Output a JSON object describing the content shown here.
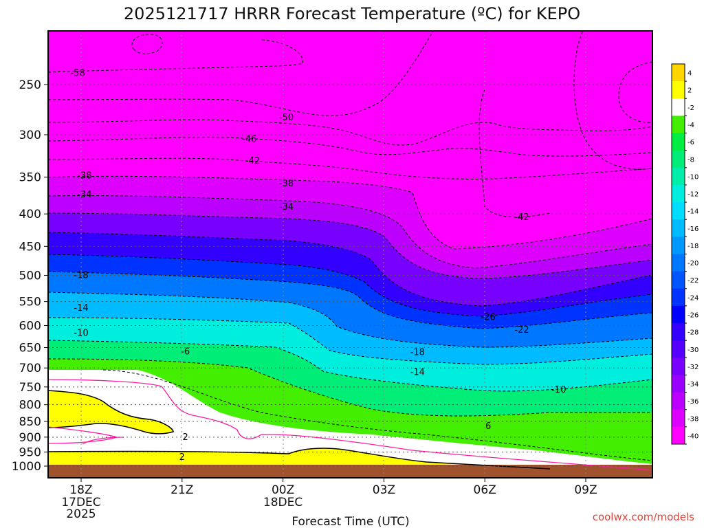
{
  "chart_data": {
    "type": "heatmap",
    "title": "2025121717 HRRR Forecast Temperature (ºC) for KEPO",
    "xlabel": "Forecast Time (UTC)",
    "ylabel": "",
    "credit": "coolwx.com/models",
    "y_scale": "log-pressure (inverted)",
    "ylim": [
      1000,
      200
    ],
    "grid": true,
    "legend": "right colorbar",
    "x_ticks": [
      {
        "label": "18Z",
        "sub": [
          "17DEC",
          "2025"
        ],
        "hour": 0
      },
      {
        "label": "21Z",
        "sub": [],
        "hour": 3
      },
      {
        "label": "00Z",
        "sub": [
          "18DEC"
        ],
        "hour": 6
      },
      {
        "label": "03Z",
        "sub": [],
        "hour": 9
      },
      {
        "label": "06Z",
        "sub": [],
        "hour": 12
      },
      {
        "label": "09Z",
        "sub": [],
        "hour": 15
      }
    ],
    "xlim_hours": [
      -1,
      17
    ],
    "y_ticks": [
      "250",
      "300",
      "350",
      "400",
      "450",
      "500",
      "550",
      "600",
      "650",
      "700",
      "750",
      "800",
      "850",
      "900",
      "950",
      "1000"
    ],
    "colorbar": {
      "levels": [
        "4",
        "2",
        "-2",
        "-4",
        "-6",
        "-8",
        "-10",
        "-12",
        "-14",
        "-16",
        "-18",
        "-20",
        "-22",
        "-24",
        "-26",
        "-28",
        "-30",
        "-32",
        "-34",
        "-36",
        "-38",
        "-40"
      ],
      "colors": [
        "#ffd600",
        "#ffff00",
        "#ffffff",
        "#44ee00",
        "#00ee44",
        "#00ee77",
        "#00eeaa",
        "#00eedd",
        "#00ddff",
        "#00bbff",
        "#0099ff",
        "#0077ff",
        "#0055ff",
        "#0033ff",
        "#0000ff",
        "#3300ff",
        "#5500ff",
        "#7700ff",
        "#9900ff",
        "#bb00ff",
        "#dd00ff",
        "#ff00ff"
      ]
    },
    "contour_labels": [
      {
        "text": "-58",
        "hour": -0.1,
        "p": 240
      },
      {
        "text": "-50",
        "hour": 6.1,
        "p": 282
      },
      {
        "text": "-46",
        "hour": 5.0,
        "p": 305
      },
      {
        "text": "-42",
        "hour": 5.1,
        "p": 330
      },
      {
        "text": "-42",
        "hour": 13.1,
        "p": 405
      },
      {
        "text": "-38",
        "hour": 0.1,
        "p": 348
      },
      {
        "text": "-38",
        "hour": 6.1,
        "p": 358
      },
      {
        "text": "-34",
        "hour": 0.1,
        "p": 373
      },
      {
        "text": "-34",
        "hour": 6.1,
        "p": 390
      },
      {
        "text": "-26",
        "hour": 12.1,
        "p": 582
      },
      {
        "text": "-22",
        "hour": 13.1,
        "p": 610
      },
      {
        "text": "-18",
        "hour": 0.0,
        "p": 500
      },
      {
        "text": "-18",
        "hour": 10.0,
        "p": 661
      },
      {
        "text": "-14",
        "hour": 0.0,
        "p": 563
      },
      {
        "text": "-14",
        "hour": 10.0,
        "p": 711
      },
      {
        "text": "-10",
        "hour": 0.0,
        "p": 617
      },
      {
        "text": "-10",
        "hour": 14.2,
        "p": 758
      },
      {
        "text": "-6",
        "hour": 3.1,
        "p": 660
      },
      {
        "text": "6",
        "hour": 12.1,
        "p": 865
      },
      {
        "text": "2",
        "hour": 3.1,
        "p": 900
      },
      {
        "text": "2",
        "hour": 3.0,
        "p": 968
      }
    ]
  }
}
